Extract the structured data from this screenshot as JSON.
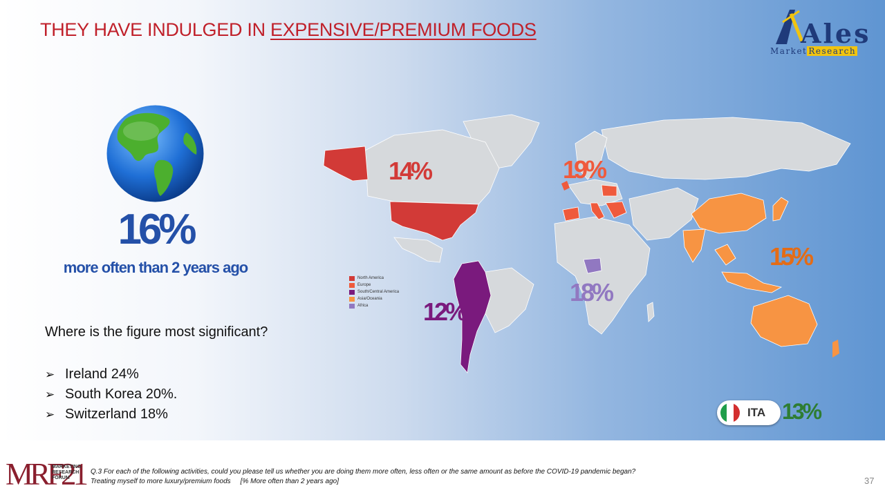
{
  "title": {
    "prefix": "THEY HAVE INDULGED IN",
    "emphasis": "EXPENSIVE/PREMIUM FOODS"
  },
  "logo": {
    "word": "Ales",
    "sub_plain": "Market",
    "sub_highlight": "Research"
  },
  "headline": {
    "value": "16%",
    "caption": "more often than 2 years ago"
  },
  "question": "Where is the figure most significant?",
  "bullets": [
    {
      "text": "Ireland 24%"
    },
    {
      "text": "South Korea 20%."
    },
    {
      "text": "Switzerland 18%"
    }
  ],
  "regions": [
    {
      "name": "North America",
      "value": "14%",
      "color": "#d23a37"
    },
    {
      "name": "Europe",
      "value": "19%",
      "color": "#ef5a3c"
    },
    {
      "name": "South/Central America",
      "value": "12%",
      "color": "#7a1a7d"
    },
    {
      "name": "Asia/Oceania",
      "value": "15%",
      "color": "#f79443"
    },
    {
      "name": "Africa",
      "value": "18%",
      "color": "#9178c1"
    }
  ],
  "ita": {
    "code": "ITA",
    "value": "13%"
  },
  "footer": {
    "brand": "MRF21",
    "brand_sub": [
      "MARKETING",
      "RESEARCH",
      "FORUM"
    ],
    "question": "Q.3 For each of the following activities, could you please tell us whether you are doing them more often, less often or the same amount as before the COVID-19 pandemic began?",
    "item": "Treating myself to more luxury/premium foods",
    "measure": "[% More often than 2 years ago]",
    "page": "37"
  },
  "colors": {
    "title": "#c0202a",
    "headline": "#2450a8",
    "land": "#d6d9dc",
    "ita_value": "#2e7d32"
  }
}
